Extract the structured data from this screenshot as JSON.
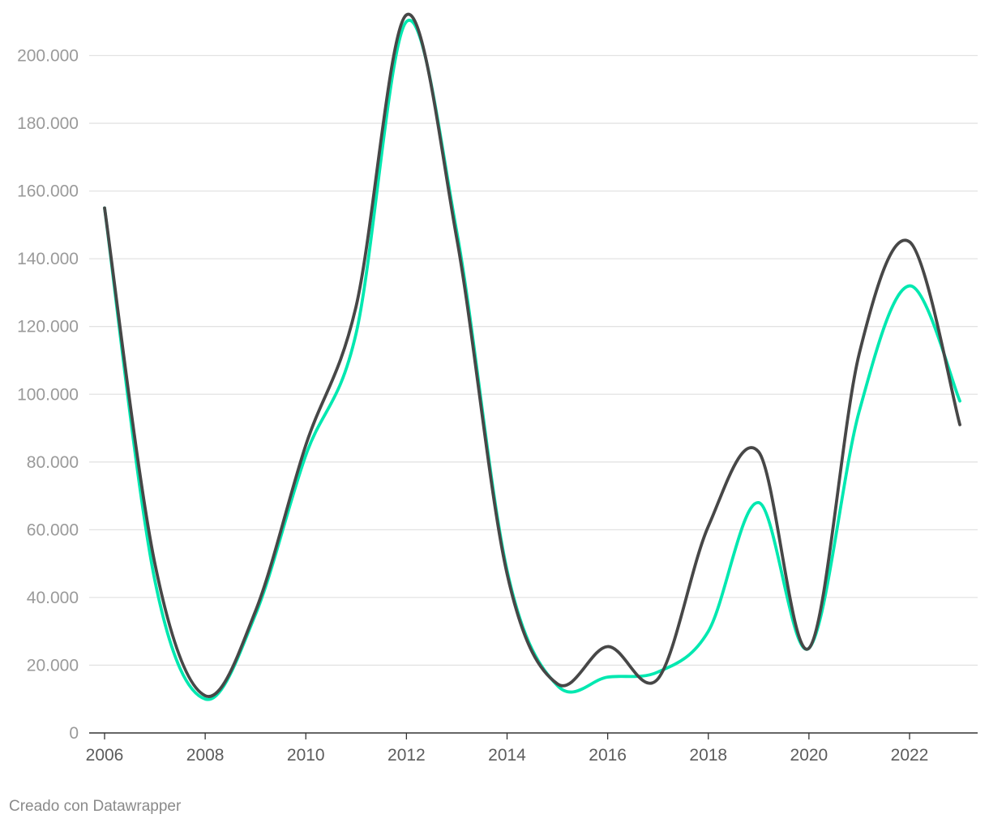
{
  "chart_data": {
    "type": "line",
    "title": "",
    "xlabel": "",
    "ylabel": "",
    "x": [
      2006,
      2007,
      2008,
      2009,
      2010,
      2011,
      2012,
      2013,
      2014,
      2015,
      2016,
      2017,
      2018,
      2019,
      2020,
      2021,
      2022,
      2023
    ],
    "x_ticks": [
      "2006",
      "2008",
      "2010",
      "2012",
      "2014",
      "2016",
      "2018",
      "2020",
      "2022"
    ],
    "x_tick_values": [
      2006,
      2008,
      2010,
      2012,
      2014,
      2016,
      2018,
      2020,
      2022
    ],
    "y_ticks": [
      "0",
      "20.000",
      "40.000",
      "60.000",
      "80.000",
      "100.000",
      "120.000",
      "140.000",
      "160.000",
      "180.000",
      "200.000"
    ],
    "y_tick_values": [
      0,
      20000,
      40000,
      60000,
      80000,
      100000,
      120000,
      140000,
      160000,
      180000,
      200000
    ],
    "xlim": [
      2006,
      2023.3
    ],
    "ylim": [
      0,
      210000
    ],
    "grid": true,
    "legend": "none",
    "series": [
      {
        "color": "#00e8b0",
        "values": [
          155000,
          45000,
          10000,
          35000,
          82000,
          118000,
          210000,
          148000,
          48000,
          14000,
          16500,
          18000,
          30000,
          68000,
          25000,
          95000,
          132000,
          98000
        ]
      },
      {
        "color": "#474747",
        "values": [
          155000,
          50000,
          11000,
          36000,
          85000,
          126000,
          212000,
          146000,
          47000,
          14500,
          25500,
          16000,
          61000,
          83000,
          25000,
          112000,
          145000,
          91000
        ]
      }
    ]
  },
  "footer": {
    "credit": "Creado con Datawrapper"
  }
}
